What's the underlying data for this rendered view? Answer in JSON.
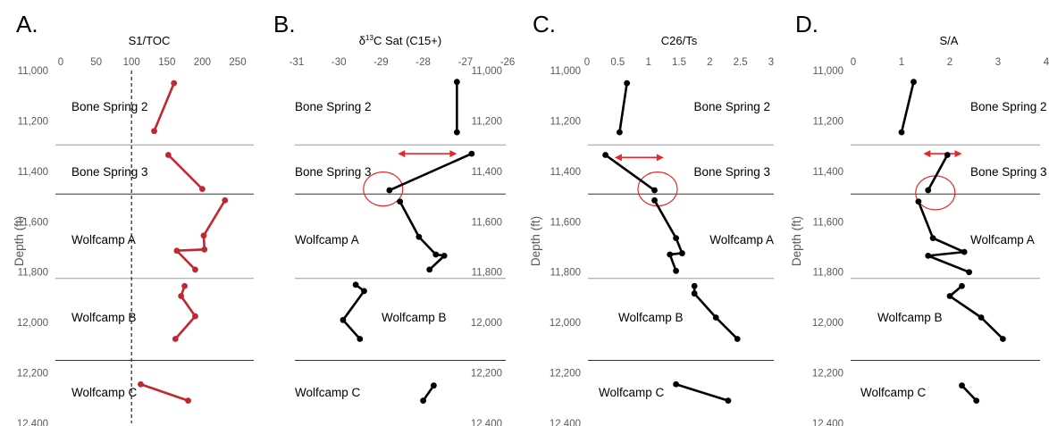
{
  "chart_data": [
    {
      "type": "line",
      "panel": "A.",
      "title": "S1/TOC",
      "ylabel": "Depth (ft)",
      "xlim": [
        0,
        250
      ],
      "xticks": [
        "0",
        "50",
        "100",
        "150",
        "200",
        "250"
      ],
      "ylim": [
        11000,
        12400
      ],
      "yticks": [
        "11,000",
        "11,200",
        "11,400",
        "11,600",
        "11,800",
        "12,000",
        "12,200",
        "12,400"
      ],
      "y_inverted": true,
      "color": "#c0282d",
      "reference_line_x": 100,
      "boundaries": [
        11295,
        11490,
        11825,
        12150
      ],
      "formations": [
        "Bone Spring 2",
        "Bone Spring 3",
        "Wolfcamp A",
        "Wolfcamp B",
        "Wolfcamp C"
      ],
      "segments": [
        [
          {
            "x": 160,
            "y": 11050
          },
          {
            "x": 132,
            "y": 11240
          }
        ],
        [
          {
            "x": 152,
            "y": 11335
          },
          {
            "x": 200,
            "y": 11470
          }
        ],
        [
          {
            "x": 232,
            "y": 11515
          },
          {
            "x": 202,
            "y": 11655
          },
          {
            "x": 203,
            "y": 11710
          },
          {
            "x": 164,
            "y": 11715
          },
          {
            "x": 190,
            "y": 11790
          }
        ],
        [
          {
            "x": 175,
            "y": 11855
          },
          {
            "x": 170,
            "y": 11895
          },
          {
            "x": 190,
            "y": 11975
          },
          {
            "x": 162,
            "y": 12065
          }
        ],
        [
          {
            "x": 113,
            "y": 12245
          },
          {
            "x": 180,
            "y": 12310
          }
        ]
      ]
    },
    {
      "type": "line",
      "panel": "B.",
      "title_main": "δ",
      "title_sup": "13",
      "title_rest": "C Sat (C15+)",
      "xlim": [
        -31,
        -26
      ],
      "xticks": [
        "-31",
        "-30",
        "-29",
        "-28",
        "-27",
        "-26"
      ],
      "ylim": [
        11000,
        12400
      ],
      "yticks": [
        "11,000",
        "11,200",
        "11,400",
        "11,600",
        "11,800",
        "12,000",
        "12,200",
        "12,400"
      ],
      "y_inverted": true,
      "color": "#000000",
      "annotation_color": "#e8262a",
      "arrow_x": [
        -28.6,
        -27.2
      ],
      "arrow_y": 11330,
      "circle": {
        "x": -28.95,
        "y": 11470
      },
      "boundaries": [
        11295,
        11490,
        11825,
        12150
      ],
      "formations": [
        "Bone Spring 2",
        "Bone Spring 3",
        "Wolfcamp A",
        "Wolfcamp B",
        "Wolfcamp C"
      ],
      "segments": [
        [
          {
            "x": -27.2,
            "y": 11045
          },
          {
            "x": -27.2,
            "y": 11245
          }
        ],
        [
          {
            "x": -26.85,
            "y": 11330
          },
          {
            "x": -28.8,
            "y": 11475
          }
        ],
        [
          {
            "x": -28.55,
            "y": 11520
          },
          {
            "x": -28.1,
            "y": 11660
          },
          {
            "x": -27.7,
            "y": 11730
          },
          {
            "x": -27.5,
            "y": 11735
          },
          {
            "x": -27.85,
            "y": 11790
          }
        ],
        [
          {
            "x": -29.6,
            "y": 11850
          },
          {
            "x": -29.4,
            "y": 11875
          },
          {
            "x": -29.9,
            "y": 11990
          },
          {
            "x": -29.5,
            "y": 12065
          }
        ],
        [
          {
            "x": -27.75,
            "y": 12250
          },
          {
            "x": -28.0,
            "y": 12310
          }
        ]
      ]
    },
    {
      "type": "line",
      "panel": "C.",
      "title": "C26/Ts",
      "xlim": [
        0,
        3
      ],
      "xticks": [
        "0",
        "0.5",
        "1",
        "1.5",
        "2",
        "2.5",
        "3"
      ],
      "ylim": [
        11000,
        12400
      ],
      "yticks": [
        "11,000",
        "11,200",
        "11,400",
        "11,600",
        "11,800",
        "12,000",
        "12,200",
        "12,400"
      ],
      "y_inverted": true,
      "color": "#000000",
      "annotation_color": "#e8262a",
      "arrow_x": [
        0.45,
        1.25
      ],
      "arrow_y": 11345,
      "circle": {
        "x": 1.15,
        "y": 11470
      },
      "boundaries": [
        11295,
        11490,
        11825,
        12150
      ],
      "formations": [
        "Bone Spring 2",
        "Bone Spring 3",
        "Wolfcamp A",
        "Wolfcamp B",
        "Wolfcamp C"
      ],
      "segments": [
        [
          {
            "x": 0.65,
            "y": 11050
          },
          {
            "x": 0.53,
            "y": 11245
          }
        ],
        [
          {
            "x": 0.3,
            "y": 11335
          },
          {
            "x": 1.1,
            "y": 11475
          }
        ],
        [
          {
            "x": 1.1,
            "y": 11515
          },
          {
            "x": 1.45,
            "y": 11665
          },
          {
            "x": 1.55,
            "y": 11725
          },
          {
            "x": 1.35,
            "y": 11730
          },
          {
            "x": 1.45,
            "y": 11795
          }
        ],
        [
          {
            "x": 1.75,
            "y": 11855
          },
          {
            "x": 1.75,
            "y": 11885
          },
          {
            "x": 2.1,
            "y": 11980
          },
          {
            "x": 2.45,
            "y": 12065
          }
        ],
        [
          {
            "x": 1.45,
            "y": 12245
          },
          {
            "x": 2.3,
            "y": 12310
          }
        ]
      ]
    },
    {
      "type": "line",
      "panel": "D.",
      "title": "S/A",
      "xlim": [
        0,
        4
      ],
      "xticks": [
        "0",
        "1",
        "2",
        "3",
        "4"
      ],
      "ylim": [
        11000,
        12400
      ],
      "yticks": [
        "11,000",
        "11,200",
        "11,400",
        "11,600",
        "11,800",
        "12,000",
        "12,200",
        "12,400"
      ],
      "y_inverted": true,
      "color": "#000000",
      "annotation_color": "#e8262a",
      "arrow_x": [
        1.45,
        2.25
      ],
      "arrow_y": 11330,
      "circle": {
        "x": 1.7,
        "y": 11485
      },
      "boundaries": [
        11295,
        11490,
        11825,
        12150
      ],
      "formations": [
        "Bone Spring 2",
        "Bone Spring 3",
        "Wolfcamp A",
        "Wolfcamp B",
        "Wolfcamp C"
      ],
      "segments": [
        [
          {
            "x": 1.25,
            "y": 11045
          },
          {
            "x": 1.0,
            "y": 11245
          }
        ],
        [
          {
            "x": 1.95,
            "y": 11335
          },
          {
            "x": 1.55,
            "y": 11475
          }
        ],
        [
          {
            "x": 1.35,
            "y": 11520
          },
          {
            "x": 1.65,
            "y": 11665
          },
          {
            "x": 2.3,
            "y": 11720
          },
          {
            "x": 1.55,
            "y": 11735
          },
          {
            "x": 2.4,
            "y": 11800
          }
        ],
        [
          {
            "x": 2.25,
            "y": 11855
          },
          {
            "x": 2.0,
            "y": 11895
          },
          {
            "x": 2.65,
            "y": 11980
          },
          {
            "x": 3.1,
            "y": 12065
          }
        ],
        [
          {
            "x": 2.25,
            "y": 12250
          },
          {
            "x": 2.55,
            "y": 12310
          }
        ]
      ]
    }
  ]
}
